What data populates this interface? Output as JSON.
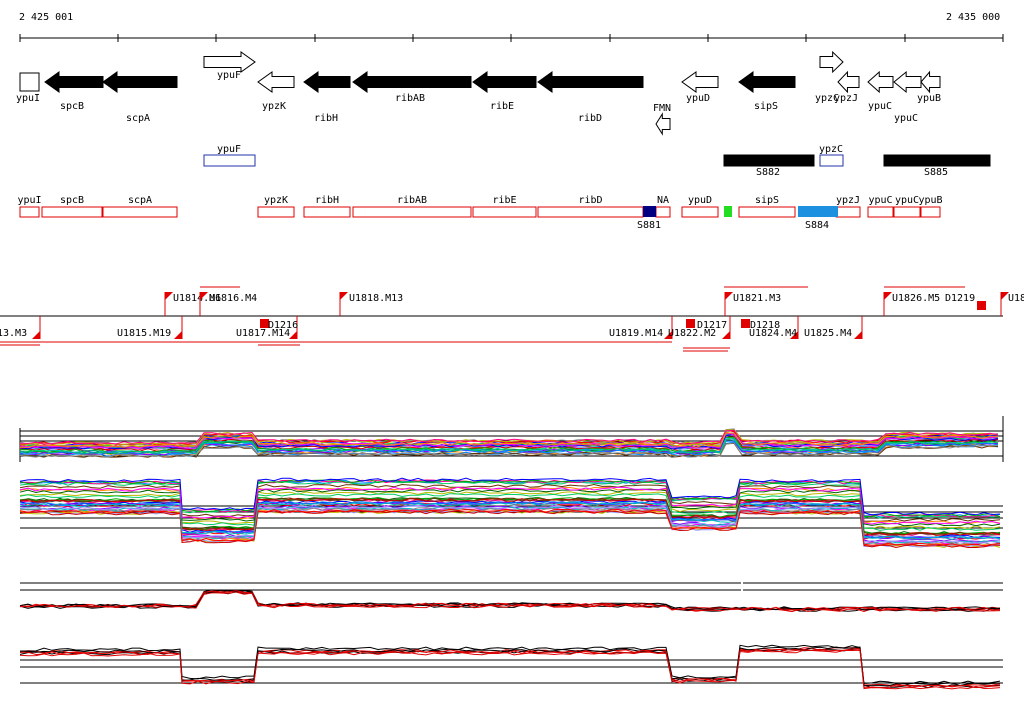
{
  "ruler": {
    "start_label": "2 425 001",
    "end_label": "2 435 000"
  },
  "genes": [
    {
      "name": "ypuI",
      "dir": "right",
      "filled": false
    },
    {
      "name": "spcB",
      "dir": "left",
      "filled": true
    },
    {
      "name": "scpA",
      "dir": "left",
      "filled": true
    },
    {
      "name": "ypuF",
      "dir": "right",
      "filled": false
    },
    {
      "name": "ypzK",
      "dir": "left",
      "filled": false
    },
    {
      "name": "ribH",
      "dir": "left",
      "filled": true
    },
    {
      "name": "ribAB",
      "dir": "left",
      "filled": true
    },
    {
      "name": "ribE",
      "dir": "left",
      "filled": true
    },
    {
      "name": "ribD",
      "dir": "left",
      "filled": true
    },
    {
      "name": "FMN",
      "dir": "left",
      "filled": false
    },
    {
      "name": "ypuD",
      "dir": "left",
      "filled": false
    },
    {
      "name": "sipS",
      "dir": "left",
      "filled": true
    },
    {
      "name": "ypzC",
      "dir": "right",
      "filled": false
    },
    {
      "name": "ypzJ",
      "dir": "left",
      "filled": false
    },
    {
      "name": "ypuC",
      "dir": "left",
      "filled": false
    },
    {
      "name": "ypuC",
      "dir": "left",
      "filled": false
    },
    {
      "name": "ypuB",
      "dir": "left",
      "filled": false
    }
  ],
  "regions": [
    {
      "name": "ypuF",
      "color": "#2233aa",
      "fill": "none"
    },
    {
      "name": "S882",
      "color": "#000000",
      "fill": "#000000"
    },
    {
      "name": "ypzC",
      "color": "#2233aa",
      "fill": "none"
    },
    {
      "name": "S885",
      "color": "#000000",
      "fill": "#000000"
    }
  ],
  "features": [
    {
      "name": "ypuI"
    },
    {
      "name": "spcB"
    },
    {
      "name": "scpA"
    },
    {
      "name": "ypzK"
    },
    {
      "name": "ribH"
    },
    {
      "name": "ribAB"
    },
    {
      "name": "ribE"
    },
    {
      "name": "ribD"
    },
    {
      "name": "NA"
    },
    {
      "name": "ypuD"
    },
    {
      "name": "sipS"
    },
    {
      "name": "ypzJ"
    },
    {
      "name": "ypuC"
    },
    {
      "name": "ypuC"
    },
    {
      "name": "ypuB"
    }
  ],
  "feature_marks": [
    {
      "name": "S881",
      "color": "#000080"
    },
    {
      "name": "",
      "color": "#22dd22"
    },
    {
      "name": "S884",
      "color": "#1e90e0"
    }
  ],
  "segments_upper": [
    "U1814.M6",
    "U1816.M4",
    "U1818.M13",
    "U1821.M3",
    "U1826.M5",
    "D1219",
    "U18"
  ],
  "segments_lower": [
    "13.M3",
    "U1815.M19",
    "U1817.M14",
    "D1216",
    "U1819.M14",
    "D1217",
    "D1218",
    "U1824.M4",
    "U1825.M4",
    "U1822.M2"
  ],
  "colors": {
    "annotation_red": "#e00000",
    "gene_black": "#000000"
  }
}
